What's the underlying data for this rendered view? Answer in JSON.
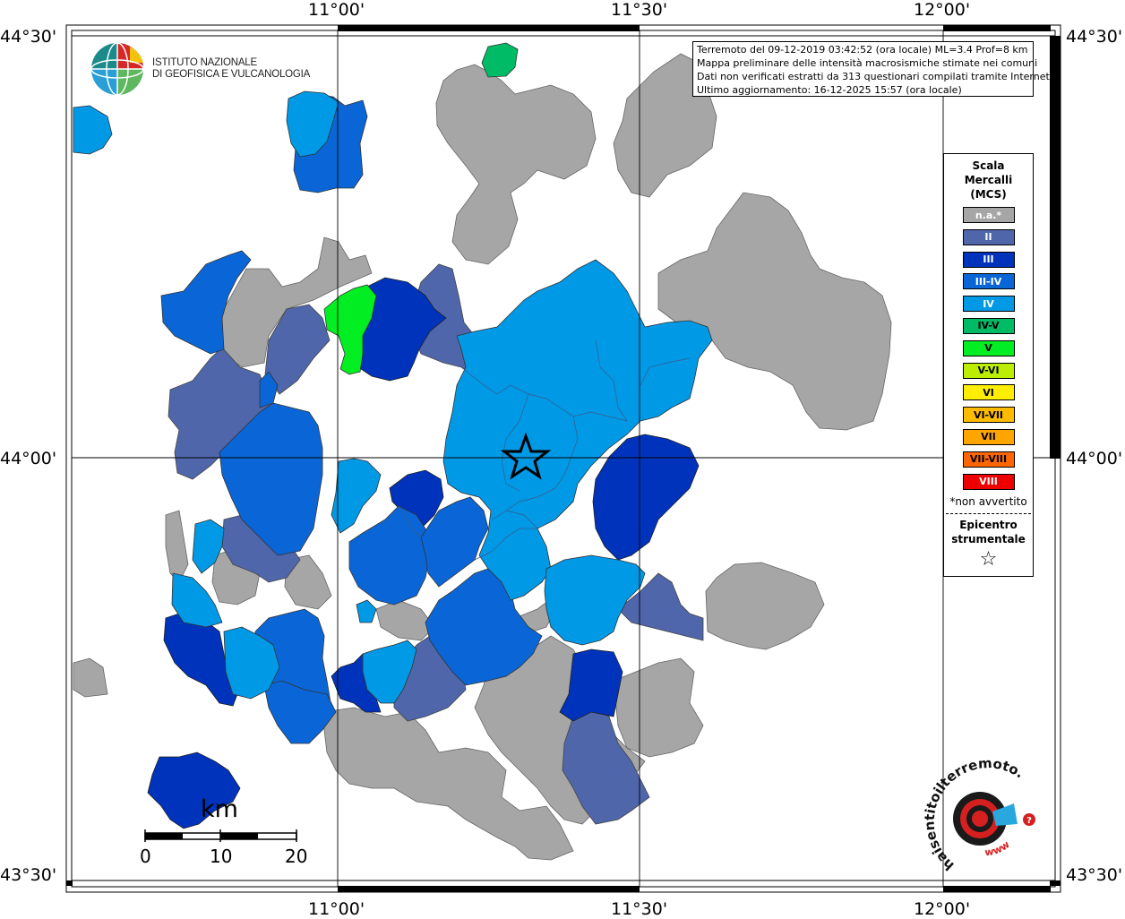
{
  "map": {
    "top_labels": [
      "11°00'",
      "11°30'",
      "12°00'"
    ],
    "bottom_labels": [
      "11°00'",
      "11°30'",
      "12°00'"
    ],
    "left_labels": [
      "44°30'",
      "44°00'",
      "43°30'"
    ],
    "right_labels": [
      "44°30'",
      "44°00'",
      "43°30'"
    ]
  },
  "info_box": {
    "line1": "Terremoto del 09-12-2019 03:42:52 (ora locale) ML=3.4 Prof=8 km",
    "line2": "Mappa preliminare delle intensità macrosismiche stimate nei comuni",
    "line3": "Dati non verificati estratti da 313 questionari compilati tramite Internet.",
    "line4": "Ultimo aggiornamento: 16-12-2025 15:57 (ora locale)"
  },
  "logo": {
    "line1": "ISTITUTO NAZIONALE",
    "line2": "DI GEOFISICA E VULCANOLOGIA"
  },
  "legend": {
    "title1": "Scala",
    "title2": "Mercalli",
    "title3": "(MCS)",
    "levels": [
      {
        "label": "n.a.*",
        "color": "#a6a6a6",
        "text": "#ffffff"
      },
      {
        "label": "II",
        "color": "#4f66aa",
        "text": "#ffffff"
      },
      {
        "label": "III",
        "color": "#0033bb",
        "text": "#ffffff"
      },
      {
        "label": "III-IV",
        "color": "#0a66d6",
        "text": "#ffffff"
      },
      {
        "label": "IV",
        "color": "#0099e6",
        "text": "#ffffff"
      },
      {
        "label": "IV-V",
        "color": "#00bb66",
        "text": "#000000"
      },
      {
        "label": "V",
        "color": "#00ee22",
        "text": "#000000"
      },
      {
        "label": "V-VI",
        "color": "#bbee00",
        "text": "#000000"
      },
      {
        "label": "VI",
        "color": "#ffee00",
        "text": "#000000"
      },
      {
        "label": "VI-VII",
        "color": "#ffbb00",
        "text": "#000000"
      },
      {
        "label": "VII",
        "color": "#ffa500",
        "text": "#000000"
      },
      {
        "label": "VII-VIII",
        "color": "#ff6600",
        "text": "#000000"
      },
      {
        "label": "VIII",
        "color": "#ee0000",
        "text": "#ffffff"
      }
    ],
    "note": "*non avvertito",
    "epi1": "Epicentro",
    "epi2": "strumentale"
  },
  "scale": {
    "unit": "km",
    "ticks": [
      "0",
      "10",
      "20"
    ]
  },
  "hsit": {
    "text": "haisentitoilterremoto.it",
    "www": "www"
  },
  "colors": {
    "na": "#a6a6a6",
    "II": "#4f66aa",
    "III": "#0033bb",
    "III-IV": "#0a66d6",
    "IV": "#0099e6",
    "IV-V": "#00bb66",
    "V": "#00ee22"
  }
}
